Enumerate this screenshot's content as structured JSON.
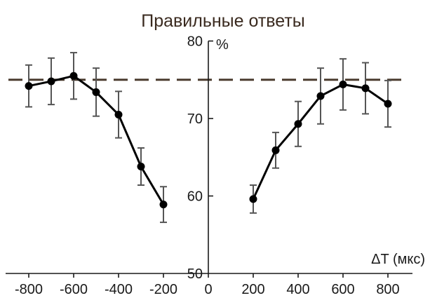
{
  "chart_data": {
    "type": "line",
    "title": "Правильные ответы",
    "xlabel": "ΔT (мкс)",
    "ylabel": "%",
    "xlim": [
      -900,
      900
    ],
    "ylim": [
      50,
      80
    ],
    "x_ticks": [
      "-800",
      "-600",
      "-400",
      "-200",
      "0",
      "200",
      "400",
      "600",
      "800"
    ],
    "y_ticks": [
      "50",
      "60",
      "70",
      "80"
    ],
    "grid": false,
    "reference_line": {
      "y": 75,
      "style": "dashed",
      "color": "#4a3b2e"
    },
    "series": [
      {
        "x": [
          -800,
          -700,
          -600,
          -500,
          -400,
          -300,
          -200
        ],
        "y": [
          74.2,
          74.8,
          75.5,
          73.4,
          70.5,
          63.8,
          58.9
        ],
        "err": [
          2.7,
          3.0,
          3.0,
          3.1,
          3.0,
          2.4,
          2.3
        ]
      },
      {
        "x": [
          200,
          300,
          400,
          500,
          600,
          700,
          800
        ],
        "y": [
          59.6,
          65.9,
          69.3,
          72.9,
          74.4,
          73.9,
          71.9
        ],
        "err": [
          1.8,
          2.3,
          2.9,
          3.6,
          3.3,
          3.3,
          3.0
        ]
      }
    ],
    "colors": {
      "series": "#000000",
      "error_bars": "#555555",
      "title": "#3a2a1f"
    }
  }
}
